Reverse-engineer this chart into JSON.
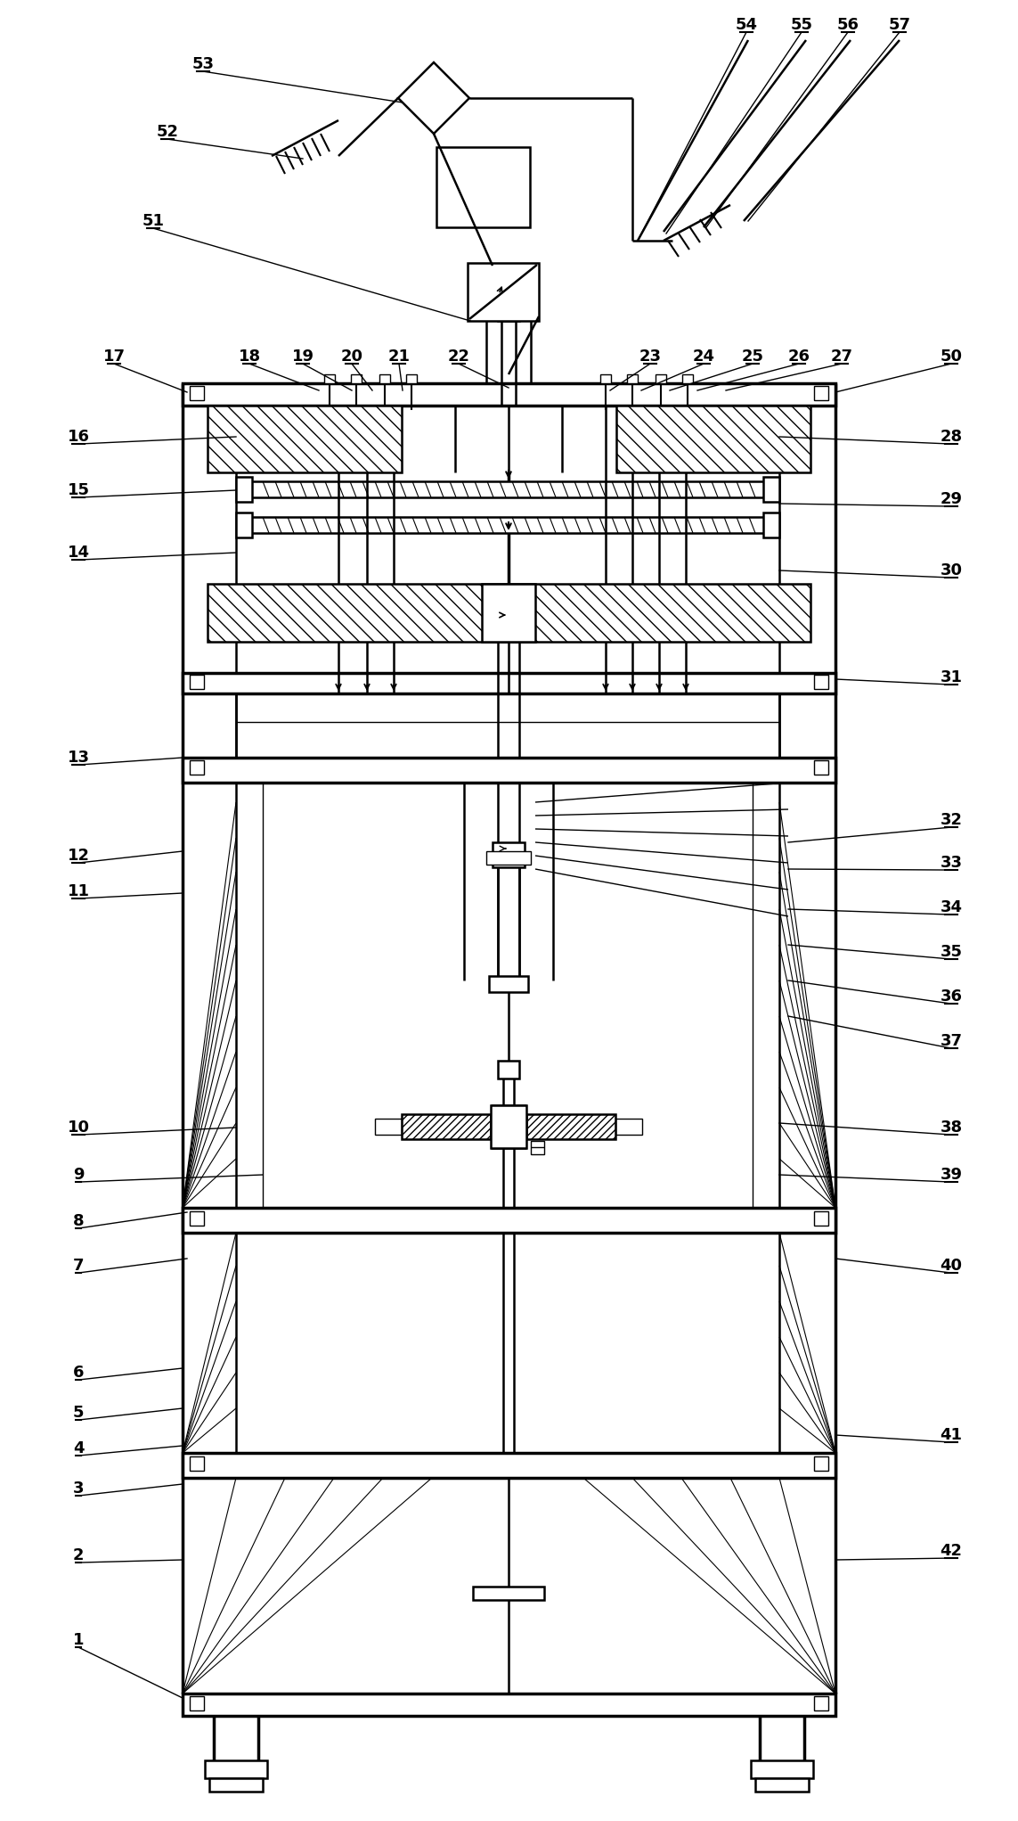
{
  "bg_color": "#ffffff",
  "line_color": "#000000",
  "label_fontsize": 13,
  "label_fontweight": "bold",
  "figsize": [
    11.43,
    20.43
  ],
  "dpi": 100
}
